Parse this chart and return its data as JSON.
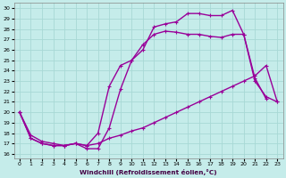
{
  "xlabel": "Windchill (Refroidissement éolien,°C)",
  "background_color": "#c5ecea",
  "grid_color": "#a8d8d5",
  "line_color": "#990099",
  "xlim_min": -0.5,
  "xlim_max": 23.5,
  "ylim_min": 15.6,
  "ylim_max": 30.5,
  "yticks": [
    16,
    17,
    18,
    19,
    20,
    21,
    22,
    23,
    24,
    25,
    26,
    27,
    28,
    29,
    30
  ],
  "xticks": [
    0,
    1,
    2,
    3,
    4,
    5,
    6,
    7,
    8,
    9,
    10,
    11,
    12,
    13,
    14,
    15,
    16,
    17,
    18,
    19,
    20,
    21,
    22,
    23
  ],
  "curve1_x": [
    0,
    1,
    2,
    3,
    4,
    5,
    6,
    7,
    8,
    9,
    10,
    11,
    12,
    13,
    14,
    15,
    16,
    17,
    18,
    19,
    20,
    21,
    22
  ],
  "curve1_y": [
    20.0,
    17.8,
    17.2,
    17.0,
    16.8,
    17.0,
    16.5,
    16.5,
    18.5,
    22.2,
    25.0,
    26.0,
    28.2,
    28.5,
    28.7,
    29.5,
    29.5,
    29.3,
    29.3,
    29.8,
    27.5,
    23.3,
    21.3
  ],
  "curve2_x": [
    0,
    1,
    2,
    3,
    4,
    5,
    6,
    7,
    8,
    9,
    10,
    11,
    12,
    13,
    14,
    15,
    16,
    17,
    18,
    19,
    20,
    21,
    22,
    23
  ],
  "curve2_y": [
    20.0,
    17.5,
    17.0,
    16.8,
    16.8,
    17.0,
    16.8,
    18.0,
    22.5,
    24.5,
    25.0,
    26.5,
    27.5,
    27.8,
    27.7,
    27.5,
    27.5,
    27.3,
    27.2,
    27.5,
    27.5,
    23.0,
    21.5,
    21.0
  ],
  "curve3_x": [
    0,
    1,
    2,
    3,
    4,
    5,
    6,
    7,
    8,
    9,
    10,
    11,
    12,
    13,
    14,
    15,
    16,
    17,
    18,
    19,
    20,
    21,
    22,
    23
  ],
  "curve3_y": [
    20.0,
    17.5,
    17.0,
    16.8,
    16.8,
    17.0,
    16.8,
    17.0,
    17.5,
    17.8,
    18.2,
    18.5,
    19.0,
    19.5,
    20.0,
    20.5,
    21.0,
    21.5,
    22.0,
    22.5,
    23.0,
    23.5,
    24.5,
    21.0
  ],
  "markersize": 3,
  "linewidth": 1.0
}
